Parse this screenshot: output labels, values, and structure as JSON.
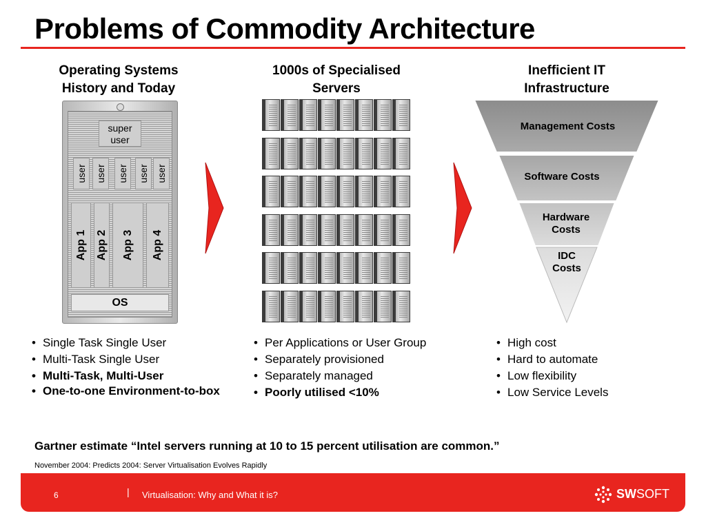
{
  "title": "Problems of Commodity Architecture",
  "columns": [
    {
      "heading_line1": "Operating Systems",
      "heading_line2": "History and Today"
    },
    {
      "heading_line1": "1000s of Specialised",
      "heading_line2": "Servers"
    },
    {
      "heading_line1": "Inefficient IT",
      "heading_line2": "Infrastructure"
    }
  ],
  "os_diagram": {
    "super_user_line1": "super",
    "super_user_line2": "user",
    "users": [
      "user",
      "user",
      "user",
      "user",
      "user"
    ],
    "apps": [
      "App 1",
      "App 2",
      "App 3",
      "App 4"
    ],
    "os": "OS"
  },
  "funnel": {
    "management": "Management Costs",
    "software": "Software Costs",
    "hardware_line1": "Hardware",
    "hardware_line2": "Costs",
    "idc_line1": "IDC",
    "idc_line2": "Costs"
  },
  "bullets": [
    {
      "items": [
        "Single Task Single User",
        "Multi-Task Single User",
        "Multi-Task, Multi-User",
        "One-to-one Environment-to-box"
      ]
    },
    {
      "items": [
        "Per Applications or User Group",
        "Separately provisioned",
        "Separately managed",
        "Poorly utilised <10%"
      ]
    },
    {
      "items": [
        "High cost",
        "Hard to automate",
        "Low flexibility",
        "Low Service Levels"
      ]
    }
  ],
  "quote": "Gartner estimate “Intel servers running at 10 to 15 percent utilisation are common.”",
  "source": "November 2004: Predicts 2004: Server Virtualisation Evolves Rapidly",
  "footer": {
    "page_number": "6",
    "separator": "|",
    "text": "Virtualisation: Why and What it is?",
    "logo_bold": "SW",
    "logo_rest": "SOFT"
  },
  "colors": {
    "accent": "#e8251f",
    "funnel_dark": "#8c8c8c",
    "funnel_light": "#e6e6e6"
  }
}
